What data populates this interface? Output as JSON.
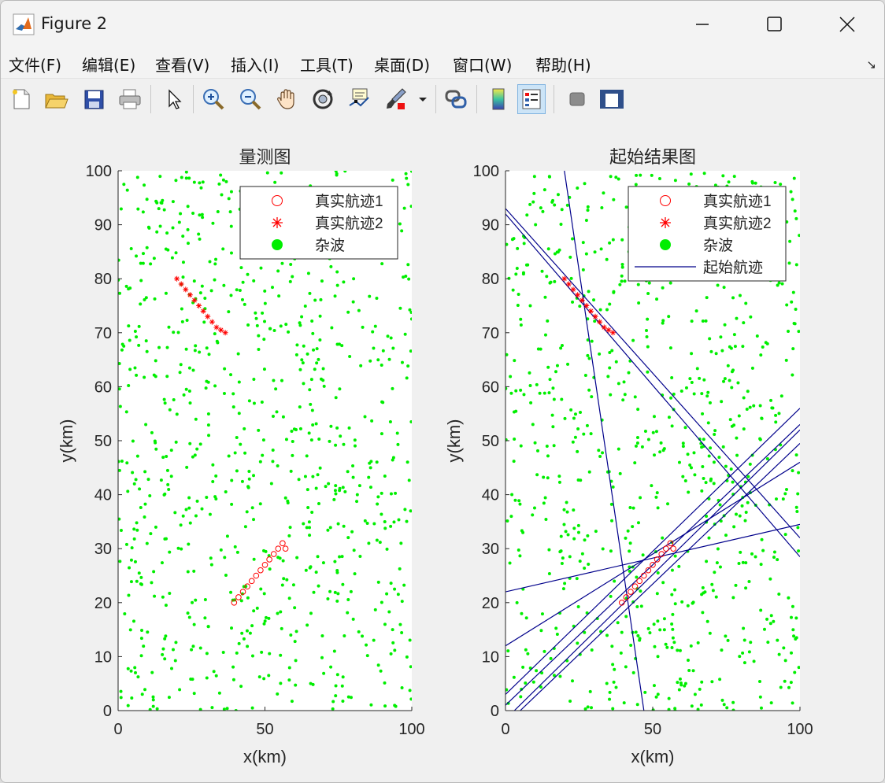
{
  "window": {
    "title": "Figure 2"
  },
  "menu": [
    {
      "label": "文件(F)"
    },
    {
      "label": "编辑(E)"
    },
    {
      "label": "查看(V)"
    },
    {
      "label": "插入(I)"
    },
    {
      "label": "工具(T)"
    },
    {
      "label": "桌面(D)"
    },
    {
      "label": "窗口(W)"
    },
    {
      "label": "帮助(H)"
    }
  ],
  "toolbar": {
    "icons": [
      "new-figure-icon",
      "open-file-icon",
      "save-icon",
      "print-icon",
      "select-pointer-icon",
      "zoom-in-icon",
      "zoom-out-icon",
      "pan-hand-icon",
      "rotate-3d-icon",
      "data-cursor-icon",
      "brush-icon",
      "link-plot-icon",
      "colorbar-icon",
      "legend-icon",
      "hide-plot-tools-icon",
      "show-plot-tools-icon"
    ],
    "active": "legend-icon"
  },
  "colors": {
    "clutter": "#00ee00",
    "truth": "#ff0000",
    "initiated": "#00008b"
  },
  "chart_data": [
    {
      "type": "scatter",
      "title": "量测图",
      "xlabel": "x(km)",
      "ylabel": "y(km)",
      "xlim": [
        0,
        100
      ],
      "ylim": [
        0,
        100
      ],
      "xticks": [
        0,
        50,
        100
      ],
      "yticks": [
        0,
        10,
        20,
        30,
        40,
        50,
        60,
        70,
        80,
        90,
        100
      ],
      "grid": false,
      "legend_position": "top-right",
      "series": [
        {
          "name": "真实航迹1",
          "marker": "circle",
          "color": "#ff0000",
          "x": [
            39.5,
            41,
            42.5,
            44,
            45.5,
            47,
            48.5,
            50,
            51.5,
            53,
            54.5,
            56,
            57
          ],
          "y": [
            20,
            21,
            22,
            23,
            24,
            25,
            26,
            27,
            28,
            29,
            30,
            31,
            30
          ]
        },
        {
          "name": "真实航迹2",
          "marker": "star",
          "color": "#ff0000",
          "x": [
            20,
            21.5,
            23,
            24.5,
            26,
            27.5,
            29,
            30.5,
            32,
            33.5,
            35,
            36.5
          ],
          "y": [
            80,
            79,
            78,
            77,
            76,
            75,
            74,
            73,
            72,
            71,
            70.5,
            70
          ]
        },
        {
          "name": "杂波",
          "marker": "dot",
          "color": "#00ee00",
          "count": 800
        }
      ]
    },
    {
      "type": "line",
      "title": "起始结果图",
      "xlabel": "x(km)",
      "ylabel": "y(km)",
      "xlim": [
        0,
        100
      ],
      "ylim": [
        0,
        100
      ],
      "xticks": [
        0,
        50,
        100
      ],
      "yticks": [
        0,
        10,
        20,
        30,
        40,
        50,
        60,
        70,
        80,
        90,
        100
      ],
      "grid": false,
      "legend_position": "top-right",
      "series": [
        {
          "name": "真实航迹1",
          "marker": "circle",
          "color": "#ff0000",
          "x": [
            39.5,
            41,
            42.5,
            44,
            45.5,
            47,
            48.5,
            50,
            51.5,
            53,
            54.5,
            56,
            57
          ],
          "y": [
            20,
            21,
            22,
            23,
            24,
            25,
            26,
            27,
            28,
            29,
            30,
            31,
            30
          ]
        },
        {
          "name": "真实航迹2",
          "marker": "star",
          "color": "#ff0000",
          "x": [
            20,
            21.5,
            23,
            24.5,
            26,
            27.5,
            29,
            30.5,
            32,
            33.5,
            35,
            36.5
          ],
          "y": [
            80,
            79,
            78,
            77,
            76,
            75,
            74,
            73,
            72,
            71,
            70.5,
            70
          ]
        },
        {
          "name": "杂波",
          "marker": "dot",
          "color": "#00ee00",
          "count": 800
        },
        {
          "name": "起始航迹",
          "marker": "line",
          "color": "#00008b",
          "lines": [
            {
              "x": [
                0,
                100
              ],
              "y": [
                93,
                32
              ]
            },
            {
              "x": [
                0,
                100
              ],
              "y": [
                92,
                28.5
              ]
            },
            {
              "x": [
                20,
                47
              ],
              "y": [
                100,
                0
              ]
            },
            {
              "x": [
                0,
                100
              ],
              "y": [
                12,
                46
              ]
            },
            {
              "x": [
                0,
                100
              ],
              "y": [
                22,
                34.5
              ]
            },
            {
              "x": [
                0,
                100
              ],
              "y": [
                3,
                56
              ]
            },
            {
              "x": [
                0,
                100
              ],
              "y": [
                1,
                53
              ]
            },
            {
              "x": [
                3,
                100
              ],
              "y": [
                0,
                52
              ]
            },
            {
              "x": [
                5,
                100
              ],
              "y": [
                0,
                49.5
              ]
            }
          ]
        }
      ]
    }
  ]
}
